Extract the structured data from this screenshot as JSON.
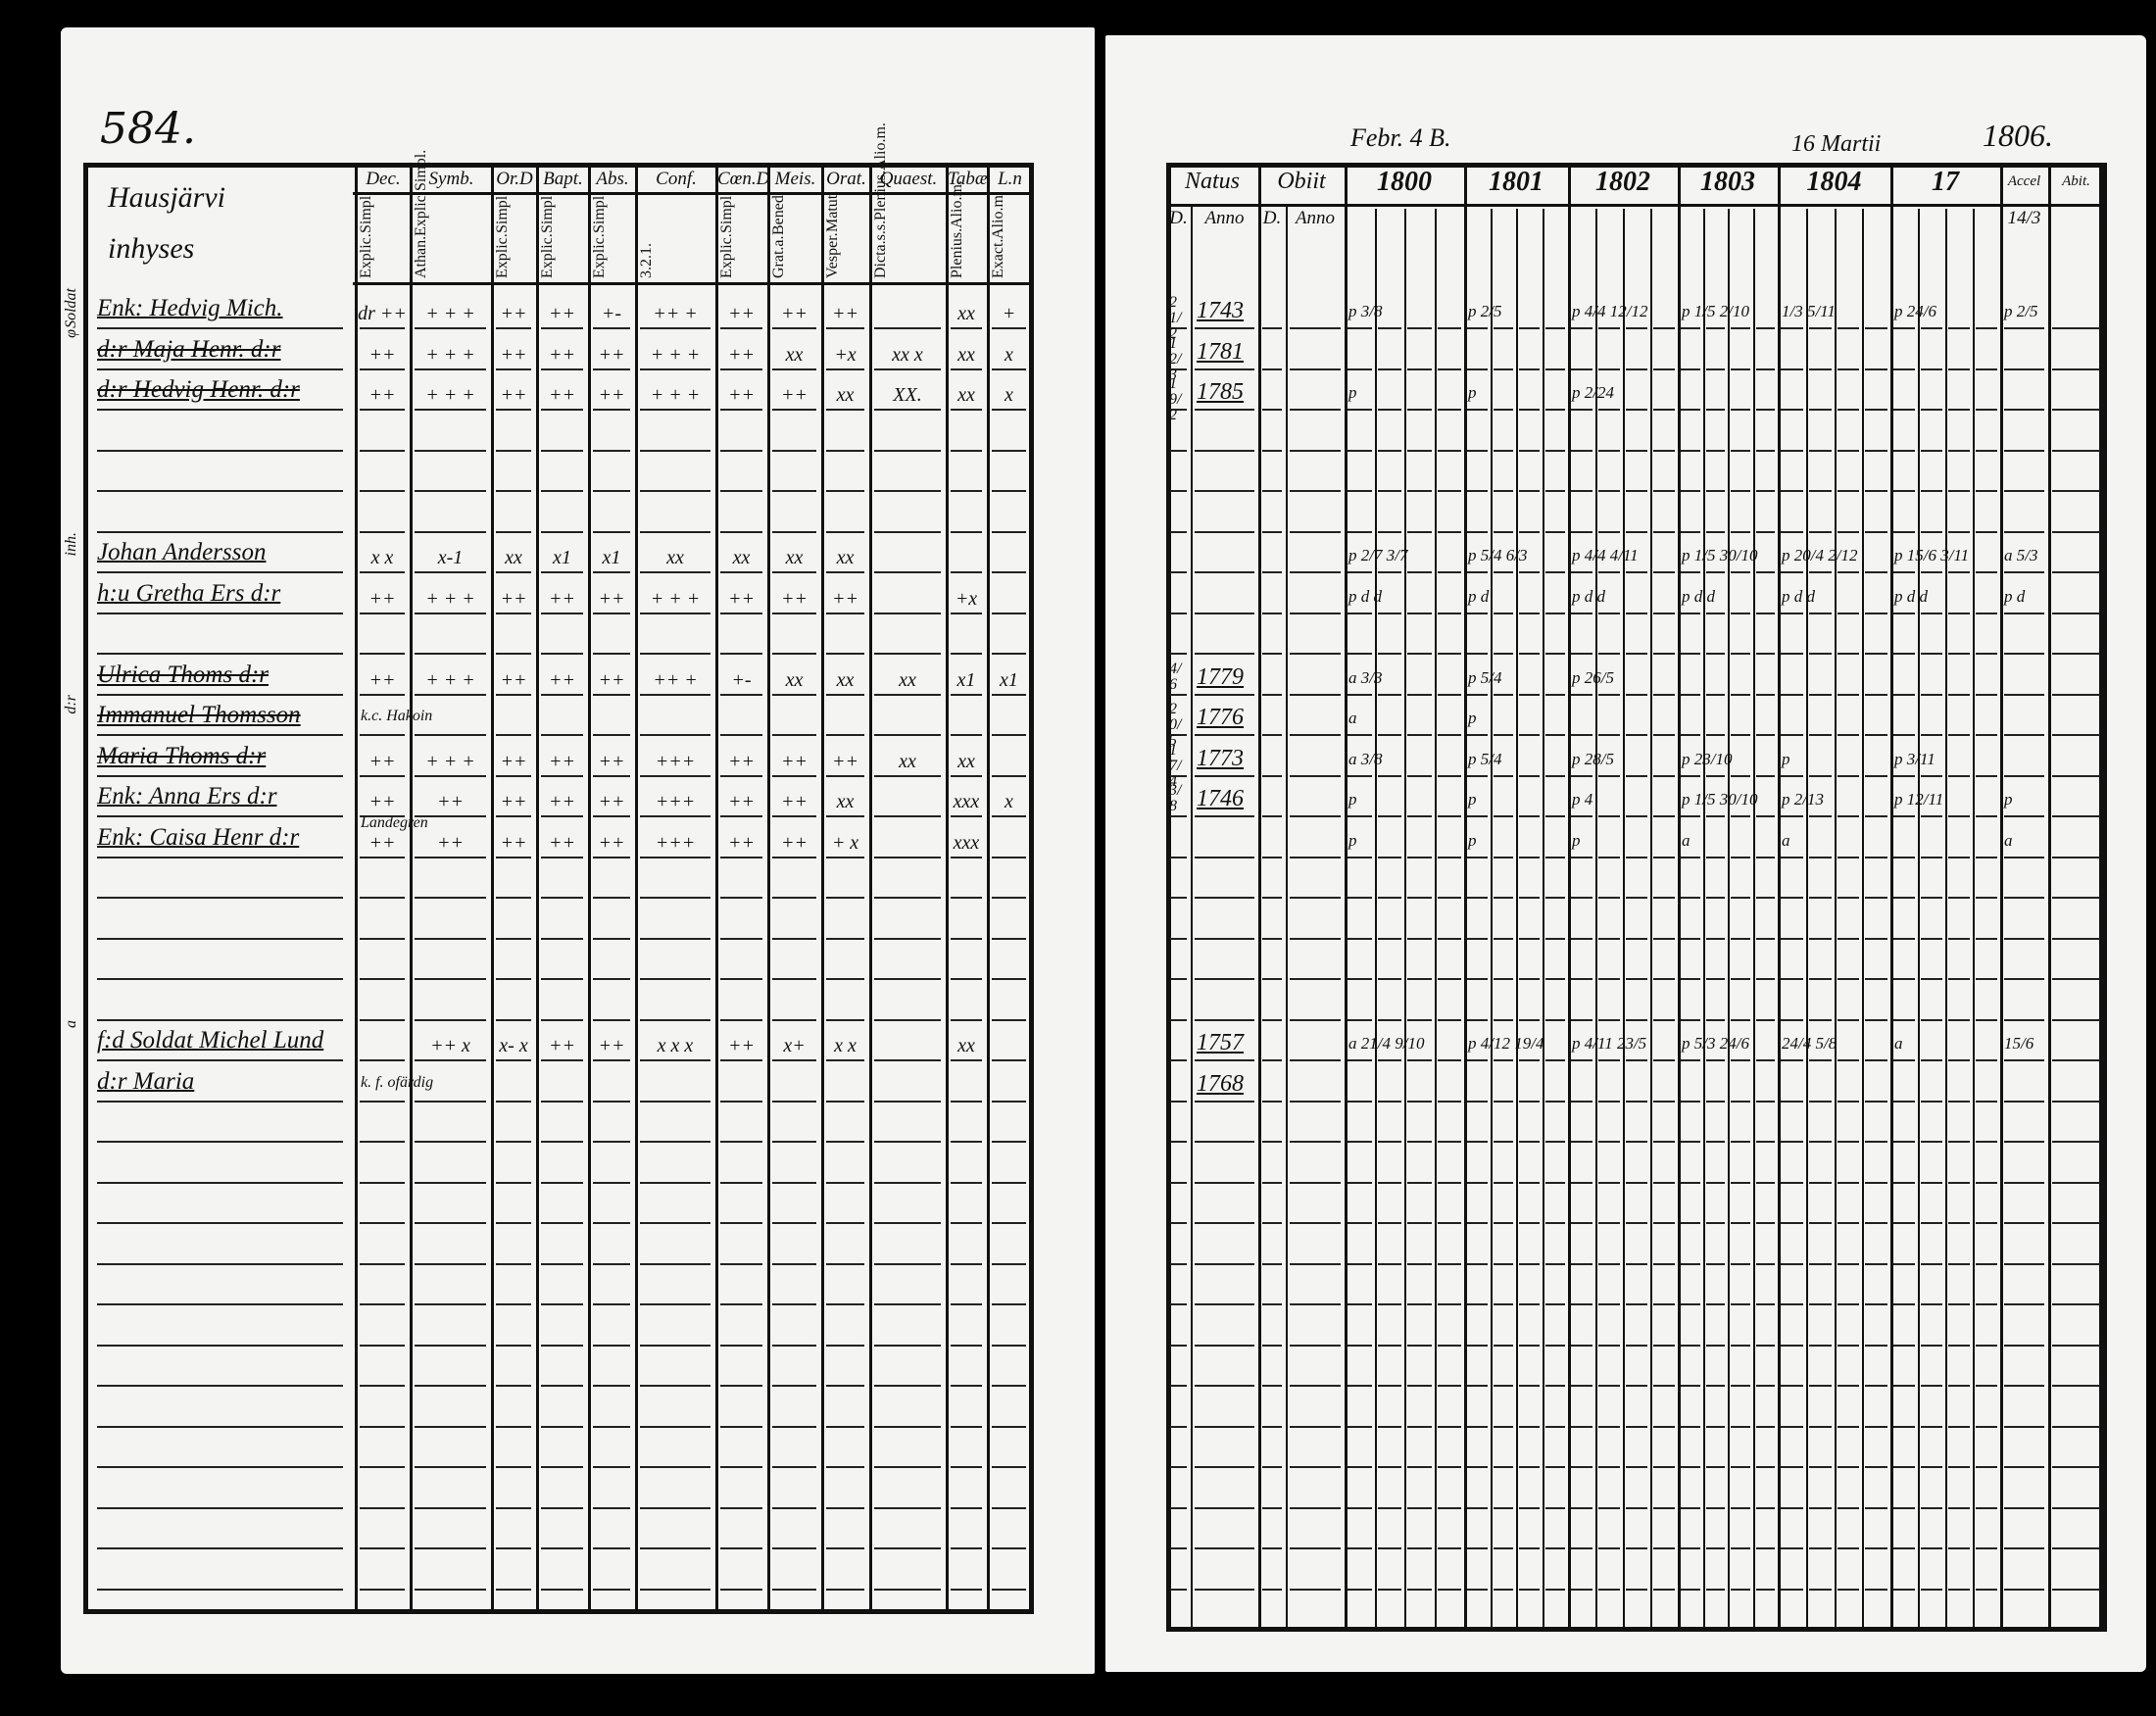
{
  "left_page": {
    "page_number": "584.",
    "village_heading": "Hausjärvi inhyses",
    "columns": [
      {
        "head": "Dec.",
        "sub": [
          "Explic.",
          "Simpl."
        ]
      },
      {
        "head": "Symb.",
        "sub": [
          "Athan.",
          "Explic.",
          "Simpl."
        ]
      },
      {
        "head": "Or.D",
        "sub": [
          "Explic.",
          "Simpl."
        ]
      },
      {
        "head": "Bapt.",
        "sub": [
          "Explic.",
          "Simpl."
        ]
      },
      {
        "head": "Abs.",
        "sub": [
          "Explic.",
          "Simpl."
        ]
      },
      {
        "head": "Conf.",
        "sub": [
          "3.",
          "2.",
          "1."
        ]
      },
      {
        "head": "Cœn.D",
        "sub": [
          "Explic.",
          "Simpl."
        ]
      },
      {
        "head": "Meis.",
        "sub": [
          "Grat.a.",
          "Bened."
        ]
      },
      {
        "head": "Orat.",
        "sub": [
          "Vesper.",
          "Matut."
        ]
      },
      {
        "head": "Quaest.",
        "sub": [
          "Dicta.s.s.",
          "Plenius.",
          "Alio.m."
        ]
      },
      {
        "head": "Tabæ",
        "sub": [
          "Plenius.",
          "Alio.m."
        ]
      },
      {
        "head": "L.n",
        "sub": [
          "Exact.",
          "Alio.m."
        ]
      }
    ],
    "rows": [
      {
        "margin": "Soldat",
        "name": "Enk: Hedvig Mich.",
        "struck": false,
        "marks": [
          "dr ++",
          "+ + +",
          "++",
          "++",
          "+-",
          "++ +",
          "++",
          "++",
          "++",
          "",
          "xx",
          "+"
        ]
      },
      {
        "margin": "φ",
        "name": "d:r Maja Henr. d:r",
        "struck": true,
        "marks": [
          "++",
          "+ + +",
          "++",
          "++",
          "++",
          "+ + +",
          "++",
          "xx",
          "+x",
          "xx x",
          "xx",
          "x"
        ]
      },
      {
        "margin": "",
        "name": "d:r Hedvig Henr. d:r",
        "struck": true,
        "marks": [
          "++",
          "+ + +",
          "++",
          "++",
          "++",
          "+ + +",
          "++",
          "++",
          "xx",
          "XX.",
          "xx",
          "x"
        ]
      },
      {
        "margin": "",
        "name": "",
        "marks": []
      },
      {
        "margin": "",
        "name": "",
        "marks": []
      },
      {
        "margin": "",
        "name": "",
        "marks": []
      },
      {
        "margin": "inh.",
        "name": "Johan Andersson",
        "struck": false,
        "marks": [
          "x x",
          "x-1",
          "xx",
          "x1",
          "x1",
          "xx",
          "xx",
          "xx",
          "xx",
          "",
          "",
          ""
        ]
      },
      {
        "margin": "",
        "name": "h:u Gretha Ers d:r",
        "struck": false,
        "marks": [
          "++",
          "+ + +",
          "++",
          "++",
          "++",
          "+ + +",
          "++",
          "++",
          "++",
          "",
          "+x",
          ""
        ]
      },
      {
        "margin": "",
        "name": "",
        "marks": []
      },
      {
        "margin": "",
        "name": "Ulrica Thoms d:r",
        "struck": true,
        "marks": [
          "++",
          "+ + +",
          "++",
          "++",
          "++",
          "++ +",
          "+-",
          "xx",
          "xx",
          "xx",
          "x1",
          "x1"
        ]
      },
      {
        "margin": "d:r",
        "name": "Immanuel Thomsson",
        "struck": true,
        "note": "k.c. Hakoin",
        "marks": []
      },
      {
        "margin": "",
        "name": "Maria Thoms d:r",
        "struck": true,
        "marks": [
          "++",
          "+ + +",
          "++",
          "++",
          "++",
          "+++",
          "++",
          "++",
          "++",
          "xx",
          "xx",
          ""
        ]
      },
      {
        "margin": "",
        "name": "Enk: Anna Ers d:r",
        "struck": false,
        "marks": [
          "++",
          "++",
          "++",
          "++",
          "++",
          "+++",
          "++",
          "++",
          "xx",
          "",
          "xxx",
          "x"
        ]
      },
      {
        "margin": "",
        "name": "Enk: Caisa Henr d:r",
        "struck": false,
        "note": "Landegren",
        "marks": [
          "++",
          "++",
          "++",
          "++",
          "++",
          "+++",
          "++",
          "++",
          "+ x",
          "",
          "xxx",
          ""
        ]
      },
      {
        "margin": "",
        "name": "",
        "marks": []
      },
      {
        "margin": "",
        "name": "",
        "marks": []
      },
      {
        "margin": "",
        "name": "",
        "marks": []
      },
      {
        "margin": "",
        "name": "",
        "marks": []
      },
      {
        "margin": "a",
        "name": "f:d Soldat Michel Lund",
        "struck": false,
        "marks": [
          "",
          "++ x",
          "x- x",
          "++",
          "++",
          "x x x",
          "++",
          "x+",
          "x x",
          "",
          "xx",
          ""
        ]
      },
      {
        "margin": "",
        "name": "d:r Maria",
        "struck": false,
        "note": "k. f. ofärdig",
        "marks": []
      }
    ]
  },
  "right_page": {
    "top_notes": [
      "Febr. 4 B.",
      "16 Martii",
      "1806."
    ],
    "headers": {
      "natus": "Natus",
      "obiit": "Obiit",
      "d": "D.",
      "anno": "Anno",
      "years": [
        "1800",
        "1801",
        "1802",
        "1803",
        "1804",
        "17"
      ],
      "accel": "Accel",
      "abit": "Abit.",
      "accel_value": "14/3"
    },
    "rows": [
      {
        "natus_d": "21/2",
        "natus_anno": "1743",
        "marks": {
          "1800": "p 3/8",
          "1801": "p 2/5",
          "1802": "p 4/4 12/12",
          "1803": "p 1/5 2/10",
          "1804": "1/3 5/11",
          "17": "p 24/6",
          "accel": "p 2/5"
        }
      },
      {
        "natus_d": "12/3",
        "natus_anno": "1781",
        "marks": {}
      },
      {
        "natus_d": "19/2",
        "natus_anno": "1785",
        "marks": {
          "1800": "p",
          "1801": "p",
          "1802": "p 2/24"
        }
      },
      {
        "marks": {}
      },
      {
        "marks": {}
      },
      {
        "marks": {}
      },
      {
        "marks": {
          "1800": "p 2/7 3/7",
          "1801": "p 5/4 6/3",
          "1802": "p 4/4 4/11",
          "1803": "p 1/5 30/10",
          "1804": "p 20/4 2/12",
          "17": "p 15/6 3/11",
          "accel": "a 5/3"
        }
      },
      {
        "marks": {
          "1800": "p d d",
          "1801": "p d",
          "1802": "p d d",
          "1803": "p d d",
          "1804": "p d d",
          "17": "p d d",
          "accel": "p d"
        }
      },
      {
        "marks": {}
      },
      {
        "natus_d": "4/6",
        "natus_anno": "1779",
        "marks": {
          "1800": "a 3/3",
          "1801": "p 5/4",
          "1802": "p 26/5"
        }
      },
      {
        "natus_d": "20/5",
        "natus_anno": "1776",
        "marks": {
          "1800": "a",
          "1801": "p"
        }
      },
      {
        "natus_d": "17/4",
        "natus_anno": "1773",
        "marks": {
          "1800": "a 3/8",
          "1801": "p 5/4",
          "1802": "p 28/5",
          "1803": "p 23/10",
          "1804": "p",
          "17": "p 3/11"
        }
      },
      {
        "natus_d": "3/8",
        "natus_anno": "1746",
        "marks": {
          "1800": "p",
          "1801": "p",
          "1802": "p 4",
          "1803": "p 1/5 30/10",
          "1804": "p 2/13",
          "17": "p 12/11",
          "accel": "p"
        }
      },
      {
        "marks": {
          "1800": "p",
          "1801": "p",
          "1802": "p",
          "1803": "a",
          "1804": "a",
          "accel": "a"
        }
      },
      {
        "marks": {}
      },
      {
        "marks": {}
      },
      {
        "marks": {}
      },
      {
        "marks": {}
      },
      {
        "natus_anno": "1757",
        "marks": {
          "1800": "a 21/4 9/10",
          "1801": "p 4/12 19/4",
          "1802": "p 4/11 23/5",
          "1803": "p 5/3 24/6",
          "1804": "24/4 5/8",
          "17": "a",
          "accel": "15/6"
        }
      },
      {
        "natus_anno": "1768",
        "marks": {}
      }
    ]
  }
}
